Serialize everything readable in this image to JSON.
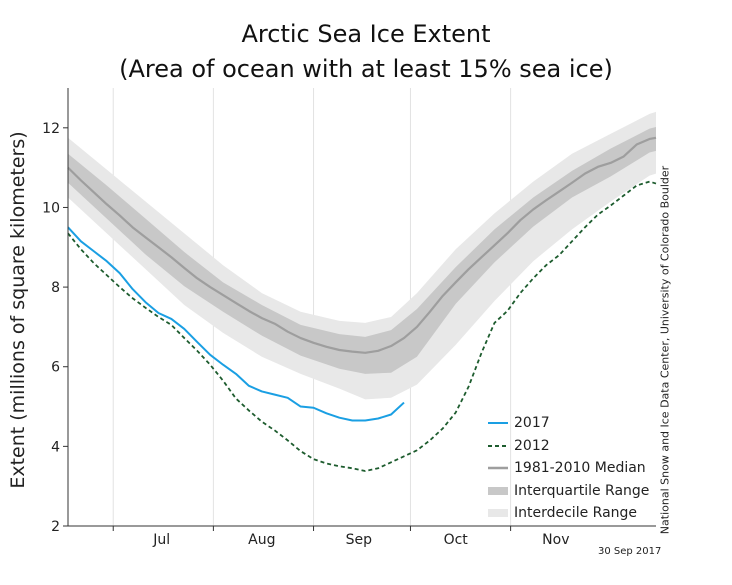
{
  "chart_data": {
    "type": "line",
    "title": "Arctic Sea Ice Extent",
    "subtitle": "(Area of ocean with at least 15% sea ice)",
    "ylabel": "Extent (millions of square kilometers)",
    "xlabel": "",
    "ylim": [
      2,
      13
    ],
    "y_ticks": [
      2,
      4,
      6,
      8,
      10,
      12
    ],
    "x_unit": "day of year",
    "x_range": [
      168,
      350
    ],
    "month_labels": [
      {
        "label": "Jul",
        "center_day": 197,
        "start_day": 182
      },
      {
        "label": "Aug",
        "center_day": 228,
        "start_day": 213
      },
      {
        "label": "Sep",
        "center_day": 258,
        "start_day": 244
      },
      {
        "label": "Oct",
        "center_day": 288,
        "start_day": 274
      },
      {
        "label": "Nov",
        "center_day": 319,
        "start_day": 305
      }
    ],
    "grid": "vertical at month starts",
    "legend_position": "bottom-right",
    "series": [
      {
        "name": "2017",
        "style": "solid",
        "color": "#1a9fe3",
        "x": [
          168,
          172,
          176,
          180,
          184,
          188,
          192,
          196,
          200,
          204,
          208,
          212,
          216,
          220,
          224,
          228,
          232,
          236,
          240,
          244,
          248,
          252,
          256,
          260,
          264,
          268,
          272
        ],
        "values": [
          9.5,
          9.15,
          8.9,
          8.65,
          8.35,
          7.95,
          7.62,
          7.35,
          7.2,
          6.95,
          6.62,
          6.3,
          6.05,
          5.82,
          5.52,
          5.38,
          5.3,
          5.22,
          5.0,
          4.97,
          4.83,
          4.72,
          4.65,
          4.65,
          4.7,
          4.8,
          5.1
        ]
      },
      {
        "name": "2012",
        "style": "dashed",
        "color": "#1d5c2e",
        "x": [
          168,
          172,
          176,
          180,
          184,
          188,
          192,
          196,
          200,
          204,
          208,
          212,
          216,
          220,
          224,
          228,
          232,
          236,
          240,
          244,
          248,
          252,
          256,
          260,
          264,
          268,
          272,
          276,
          280,
          284,
          288,
          292,
          296,
          300,
          304,
          308,
          312,
          316,
          320,
          324,
          328,
          332,
          336,
          340,
          344,
          348,
          350
        ],
        "values": [
          9.35,
          8.95,
          8.6,
          8.3,
          8.0,
          7.72,
          7.48,
          7.25,
          7.05,
          6.72,
          6.4,
          6.05,
          5.65,
          5.2,
          4.9,
          4.62,
          4.4,
          4.15,
          3.88,
          3.68,
          3.57,
          3.5,
          3.45,
          3.38,
          3.45,
          3.6,
          3.75,
          3.9,
          4.15,
          4.45,
          4.85,
          5.5,
          6.35,
          7.1,
          7.4,
          7.85,
          8.22,
          8.55,
          8.8,
          9.15,
          9.5,
          9.82,
          10.05,
          10.3,
          10.55,
          10.65,
          10.6
        ]
      },
      {
        "name": "1981-2010 Median",
        "style": "solid",
        "color": "#9e9e9e",
        "x": [
          168,
          172,
          176,
          180,
          184,
          188,
          192,
          196,
          200,
          204,
          208,
          212,
          216,
          220,
          224,
          228,
          232,
          236,
          240,
          244,
          248,
          252,
          256,
          260,
          264,
          268,
          272,
          276,
          280,
          284,
          288,
          292,
          296,
          300,
          304,
          308,
          312,
          316,
          320,
          324,
          328,
          332,
          336,
          340,
          344,
          348,
          350
        ],
        "values": [
          11.0,
          10.68,
          10.38,
          10.08,
          9.8,
          9.5,
          9.25,
          9.0,
          8.75,
          8.48,
          8.22,
          8.0,
          7.8,
          7.6,
          7.4,
          7.22,
          7.08,
          6.88,
          6.72,
          6.6,
          6.5,
          6.42,
          6.38,
          6.35,
          6.4,
          6.52,
          6.72,
          7.0,
          7.38,
          7.78,
          8.12,
          8.45,
          8.75,
          9.05,
          9.35,
          9.68,
          9.95,
          10.18,
          10.4,
          10.62,
          10.85,
          11.02,
          11.12,
          11.28,
          11.58,
          11.72,
          11.75
        ]
      }
    ],
    "bands": [
      {
        "name": "Interdecile Range",
        "color": "#e8e8e8",
        "x": [
          168,
          180,
          192,
          204,
          216,
          228,
          240,
          252,
          260,
          268,
          276,
          288,
          300,
          312,
          324,
          336,
          348,
          350
        ],
        "upper": [
          11.75,
          10.95,
          10.15,
          9.35,
          8.55,
          7.85,
          7.38,
          7.15,
          7.1,
          7.25,
          7.85,
          8.95,
          9.85,
          10.65,
          11.35,
          11.85,
          12.35,
          12.4
        ],
        "lower": [
          10.25,
          9.35,
          8.45,
          7.55,
          6.85,
          6.25,
          5.82,
          5.45,
          5.18,
          5.22,
          5.55,
          6.55,
          7.65,
          8.65,
          9.45,
          10.15,
          10.8,
          10.85
        ]
      },
      {
        "name": "Interquartile Range",
        "color": "#c8c8c8",
        "x": [
          168,
          180,
          192,
          204,
          216,
          228,
          240,
          252,
          260,
          268,
          276,
          288,
          300,
          312,
          324,
          336,
          348,
          350
        ],
        "upper": [
          11.35,
          10.55,
          9.72,
          8.88,
          8.12,
          7.55,
          7.05,
          6.82,
          6.75,
          6.92,
          7.45,
          8.5,
          9.45,
          10.25,
          10.92,
          11.48,
          11.98,
          12.02
        ],
        "lower": [
          10.62,
          9.72,
          8.82,
          8.02,
          7.38,
          6.78,
          6.28,
          5.95,
          5.82,
          5.85,
          6.25,
          7.58,
          8.62,
          9.52,
          10.25,
          10.78,
          11.38,
          11.42
        ]
      }
    ],
    "legend": [
      {
        "label": "2017",
        "kind": "line",
        "color": "#1a9fe3"
      },
      {
        "label": "2012",
        "kind": "dashed",
        "color": "#1d5c2e"
      },
      {
        "label": "1981-2010 Median",
        "kind": "line",
        "color": "#9e9e9e"
      },
      {
        "label": "Interquartile Range",
        "kind": "band",
        "color": "#c8c8c8"
      },
      {
        "label": "Interdecile Range",
        "kind": "band",
        "color": "#e8e8e8"
      }
    ]
  },
  "credit": "National Snow and Ice Data Center, University of Colorado Boulder",
  "date_label": "30 Sep 2017"
}
